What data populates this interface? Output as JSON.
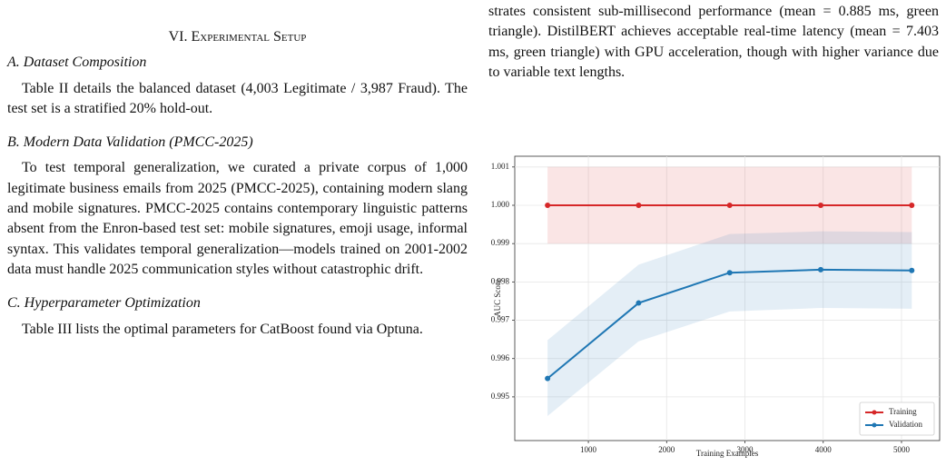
{
  "document": {
    "right_paragraph": "strates consistent sub-millisecond performance (mean = 0.885 ms, green triangle). DistilBERT achieves acceptable real-time latency (mean = 7.403 ms, green triangle) with GPU acceleration, though with higher variance due to variable text lengths.",
    "section_heading": "VI. Experimental Setup",
    "subsections": [
      {
        "heading": "A. Dataset Composition",
        "text": "Table II details the balanced dataset (4,003 Legitimate / 3,987 Fraud). The test set is a stratified 20% hold-out."
      },
      {
        "heading": "B. Modern Data Validation (PMCC-2025)",
        "text": "To test temporal generalization, we curated a private corpus of 1,000 legitimate business emails from 2025 (PMCC-2025), containing modern slang and mobile signatures. PMCC-2025 contains contemporary linguistic patterns absent from the Enron-based test set: mobile signatures, emoji usage, informal syntax. This validates temporal generalization—models trained on 2001-2002 data must handle 2025 communication styles without catastrophic drift."
      },
      {
        "heading": "C. Hyperparameter Optimization",
        "text": "Table III lists the optimal parameters for CatBoost found via Optuna."
      }
    ]
  },
  "chart_data": {
    "type": "line",
    "x_label": "Training Examples",
    "y_label": "AUC Score",
    "x": [
      479,
      1642,
      2805,
      3968,
      5131
    ],
    "series": [
      {
        "name": "Training",
        "color": "#d62728",
        "values": [
          1.0,
          1.0,
          1.0,
          1.0,
          1.0
        ],
        "band_lower": [
          0.999,
          0.999,
          0.999,
          0.999,
          0.999
        ],
        "band_upper": [
          1.001,
          1.001,
          1.001,
          1.001,
          1.001
        ]
      },
      {
        "name": "Validation",
        "color": "#1f77b4",
        "values": [
          0.99548,
          0.99745,
          0.99824,
          0.99832,
          0.9983
        ],
        "band_lower": [
          0.9945,
          0.99645,
          0.99723,
          0.99732,
          0.9973
        ],
        "band_upper": [
          0.99648,
          0.99845,
          0.99925,
          0.99932,
          0.9993
        ]
      }
    ],
    "xlim": [
      60,
      5487
    ],
    "ylim": [
      0.99386,
      1.00128
    ],
    "xticks": [
      1000,
      2000,
      3000,
      4000,
      5000
    ],
    "yticks": [
      0.995,
      0.996,
      0.997,
      0.998,
      0.999,
      {
        "value": 1.0,
        "label": "1.000"
      },
      1.001
    ],
    "grid": true,
    "legend": "lower right"
  }
}
